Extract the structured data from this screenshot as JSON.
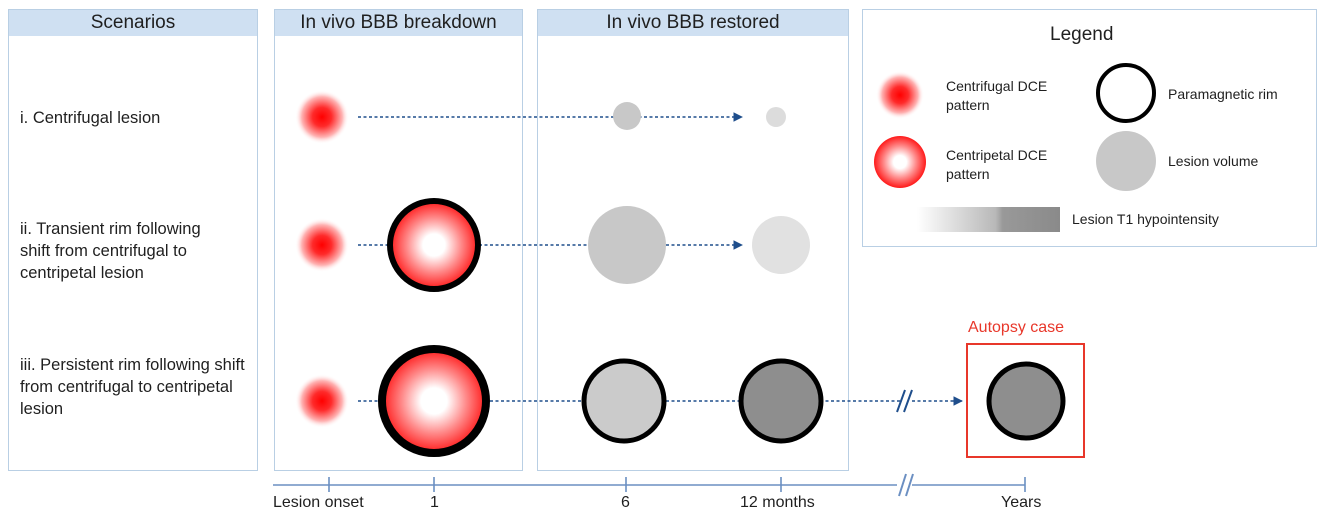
{
  "panels": {
    "scenarios": "Scenarios",
    "breakdown": "In vivo BBB breakdown",
    "restored": "In vivo BBB restored"
  },
  "scenarios": [
    "i. Centrifugal lesion",
    "ii. Transient rim following shift from centrifugal to centripetal lesion",
    "iii. Persistent rim following shift from centrifugal to centripetal lesion"
  ],
  "legend": {
    "title": "Legend",
    "centrifugal": "Centrifugal DCE pattern",
    "centripetal": "Centripetal DCE pattern",
    "rim": "Paramagnetic rim",
    "volume": "Lesion volume",
    "t1": "Lesion T1 hypointensity"
  },
  "autopsy": "Autopsy case",
  "timeline": {
    "onset": "Lesion onset",
    "t1": "1",
    "t6": "6",
    "t12": "12 months",
    "years": "Years"
  },
  "colors": {
    "panel_header": "#cfe0f2",
    "dce_red": "#ff1a1a",
    "lesion_light": "#c8c8c8",
    "lesion_dark": "#8a8a8a",
    "arrow": "#1f4e8c",
    "autopsy": "#e8372a"
  }
}
